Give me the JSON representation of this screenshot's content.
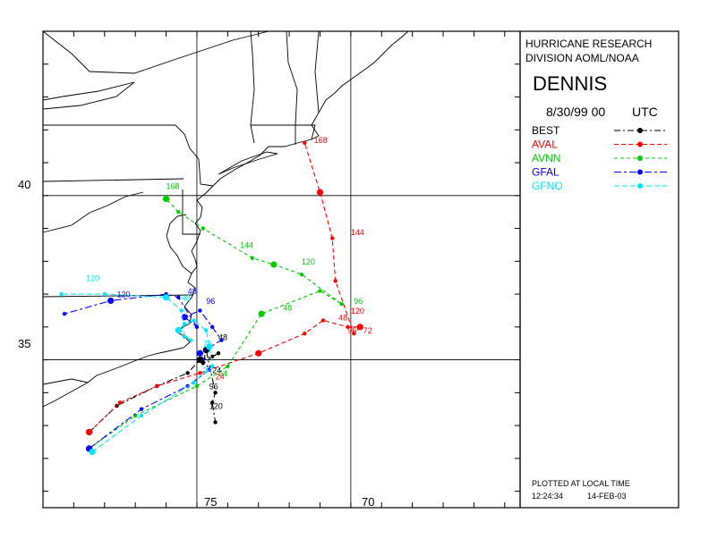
{
  "header": {
    "org_line1": "HURRICANE RESEARCH",
    "org_line2": "DIVISION AOML/NOAA",
    "storm_name": "DENNIS",
    "init_time": "8/30/99 00",
    "tz": "UTC"
  },
  "legend": [
    {
      "name": "BEST",
      "color": "#000000"
    },
    {
      "name": "AVAL",
      "color": "#ff0000"
    },
    {
      "name": "AVNN",
      "color": "#00cc00"
    },
    {
      "name": "GFAL",
      "color": "#0000ff"
    },
    {
      "name": "GFNO",
      "color": "#00e5ff"
    }
  ],
  "footer": {
    "plotted": "PLOTTED AT LOCAL TIME",
    "time": "12:24:34",
    "date": "14-FEB-03"
  },
  "axes": {
    "lat_labels": [
      {
        "value": 40,
        "text": "40"
      },
      {
        "value": 35,
        "text": "35"
      }
    ],
    "lon_labels": [
      {
        "value": 75,
        "text": "75"
      },
      {
        "value": 70,
        "text": "70"
      }
    ]
  },
  "chart_data": {
    "type": "map-track",
    "lon_range": [
      -80,
      -64.5
    ],
    "lat_range": [
      30.5,
      45.0
    ],
    "series": [
      {
        "name": "BEST",
        "color": "#000000",
        "dash": "7,3,2,3",
        "points": [
          {
            "lon": -78.5,
            "lat": 32.8
          },
          {
            "lon": -77.6,
            "lat": 33.6
          },
          {
            "lon": -76.3,
            "lat": 34.2
          },
          {
            "lon": -75.3,
            "lat": 34.6
          },
          {
            "lon": -74.9,
            "lat": 35.0
          },
          {
            "lon": -74.5,
            "lat": 35.1
          },
          {
            "lon": -74.3,
            "lat": 35.2
          },
          {
            "lon": -74.8,
            "lat": 34.9
          },
          {
            "lon": -74.7,
            "lat": 35.3
          },
          {
            "lon": -74.4,
            "lat": 34.0
          },
          {
            "lon": -74.5,
            "lat": 33.7
          },
          {
            "lon": -74.4,
            "lat": 33.1
          }
        ],
        "labels": [
          {
            "lon": -74.3,
            "lat": 35.6,
            "text": "48"
          },
          {
            "lon": -74.5,
            "lat": 34.6,
            "text": "24"
          },
          {
            "lon": -74.6,
            "lat": 34.1,
            "text": "96"
          },
          {
            "lon": -74.6,
            "lat": 33.5,
            "text": "120"
          }
        ]
      },
      {
        "name": "AVAL",
        "color": "#ff0000",
        "dash": "5,3",
        "points": [
          {
            "lon": -78.5,
            "lat": 32.8
          },
          {
            "lon": -77.5,
            "lat": 33.7
          },
          {
            "lon": -76.3,
            "lat": 34.2
          },
          {
            "lon": -74.9,
            "lat": 34.6
          },
          {
            "lon": -73.0,
            "lat": 35.2
          },
          {
            "lon": -71.5,
            "lat": 35.8
          },
          {
            "lon": -70.9,
            "lat": 36.2
          },
          {
            "lon": -70.1,
            "lat": 36.0
          },
          {
            "lon": -69.7,
            "lat": 36.0
          },
          {
            "lon": -69.9,
            "lat": 35.8
          },
          {
            "lon": -70.5,
            "lat": 37.4
          },
          {
            "lon": -70.6,
            "lat": 38.7
          },
          {
            "lon": -71.0,
            "lat": 40.1
          },
          {
            "lon": -71.5,
            "lat": 41.6
          }
        ],
        "labels": [
          {
            "lon": -74.4,
            "lat": 34.4,
            "text": "24"
          },
          {
            "lon": -70.4,
            "lat": 36.2,
            "text": "48"
          },
          {
            "lon": -70.1,
            "lat": 35.8,
            "text": "96"
          },
          {
            "lon": -69.6,
            "lat": 35.8,
            "text": "72"
          },
          {
            "lon": -70.0,
            "lat": 36.4,
            "text": "120"
          },
          {
            "lon": -70.0,
            "lat": 38.8,
            "text": "144"
          },
          {
            "lon": -71.2,
            "lat": 41.6,
            "text": "168"
          }
        ]
      },
      {
        "name": "AVNN",
        "color": "#00cc00",
        "dash": "4,3",
        "points": [
          {
            "lon": -78.5,
            "lat": 32.3
          },
          {
            "lon": -77.0,
            "lat": 33.3
          },
          {
            "lon": -75.0,
            "lat": 34.2
          },
          {
            "lon": -74.0,
            "lat": 34.8
          },
          {
            "lon": -72.9,
            "lat": 36.4
          },
          {
            "lon": -71.0,
            "lat": 37.1
          },
          {
            "lon": -70.3,
            "lat": 36.7
          },
          {
            "lon": -71.6,
            "lat": 37.6
          },
          {
            "lon": -72.5,
            "lat": 37.9
          },
          {
            "lon": -73.2,
            "lat": 38.1
          },
          {
            "lon": -74.8,
            "lat": 39.0
          },
          {
            "lon": -75.6,
            "lat": 39.5
          },
          {
            "lon": -76.0,
            "lat": 39.9
          }
        ],
        "labels": [
          {
            "lon": -74.3,
            "lat": 34.5,
            "text": "24"
          },
          {
            "lon": -72.2,
            "lat": 36.5,
            "text": "48"
          },
          {
            "lon": -69.9,
            "lat": 36.7,
            "text": "96"
          },
          {
            "lon": -71.6,
            "lat": 37.9,
            "text": "120"
          },
          {
            "lon": -73.6,
            "lat": 38.4,
            "text": "144"
          },
          {
            "lon": -76.0,
            "lat": 40.2,
            "text": "168"
          }
        ]
      },
      {
        "name": "GFAL",
        "color": "#0000ff",
        "dash": "8,3,3,3",
        "points": [
          {
            "lon": -78.5,
            "lat": 32.3
          },
          {
            "lon": -76.8,
            "lat": 33.5
          },
          {
            "lon": -75.3,
            "lat": 34.2
          },
          {
            "lon": -74.6,
            "lat": 34.7
          },
          {
            "lon": -74.9,
            "lat": 35.2
          },
          {
            "lon": -74.2,
            "lat": 35.6
          },
          {
            "lon": -74.5,
            "lat": 36.0
          },
          {
            "lon": -74.9,
            "lat": 36.5
          },
          {
            "lon": -75.4,
            "lat": 36.3
          },
          {
            "lon": -75.0,
            "lat": 36.0
          },
          {
            "lon": -75.6,
            "lat": 36.9
          },
          {
            "lon": -76.0,
            "lat": 37.0
          },
          {
            "lon": -77.8,
            "lat": 36.8
          },
          {
            "lon": -79.3,
            "lat": 36.4
          }
        ],
        "labels": [
          {
            "lon": -74.7,
            "lat": 36.7,
            "text": "96"
          },
          {
            "lon": -75.3,
            "lat": 37.0,
            "text": "48"
          },
          {
            "lon": -77.6,
            "lat": 36.9,
            "text": "120"
          }
        ]
      },
      {
        "name": "GFNO",
        "color": "#00e5ff",
        "dash": "6,3",
        "points": [
          {
            "lon": -78.4,
            "lat": 32.2
          },
          {
            "lon": -76.8,
            "lat": 33.3
          },
          {
            "lon": -75.1,
            "lat": 34.3
          },
          {
            "lon": -74.5,
            "lat": 34.8
          },
          {
            "lon": -74.6,
            "lat": 35.4
          },
          {
            "lon": -74.7,
            "lat": 35.9
          },
          {
            "lon": -75.1,
            "lat": 36.2
          },
          {
            "lon": -75.4,
            "lat": 36.1
          },
          {
            "lon": -75.6,
            "lat": 35.9
          },
          {
            "lon": -75.2,
            "lat": 35.6
          },
          {
            "lon": -75.4,
            "lat": 35.7
          },
          {
            "lon": -75.5,
            "lat": 36.5
          },
          {
            "lon": -76.0,
            "lat": 36.9
          },
          {
            "lon": -78.0,
            "lat": 37.0
          },
          {
            "lon": -79.4,
            "lat": 37.0
          }
        ],
        "labels": [
          {
            "lon": -74.8,
            "lat": 34.6,
            "text": "24"
          },
          {
            "lon": -74.8,
            "lat": 35.4,
            "text": "72"
          },
          {
            "lon": -75.5,
            "lat": 36.8,
            "text": "48"
          },
          {
            "lon": -78.6,
            "lat": 37.4,
            "text": "120"
          }
        ]
      }
    ]
  }
}
